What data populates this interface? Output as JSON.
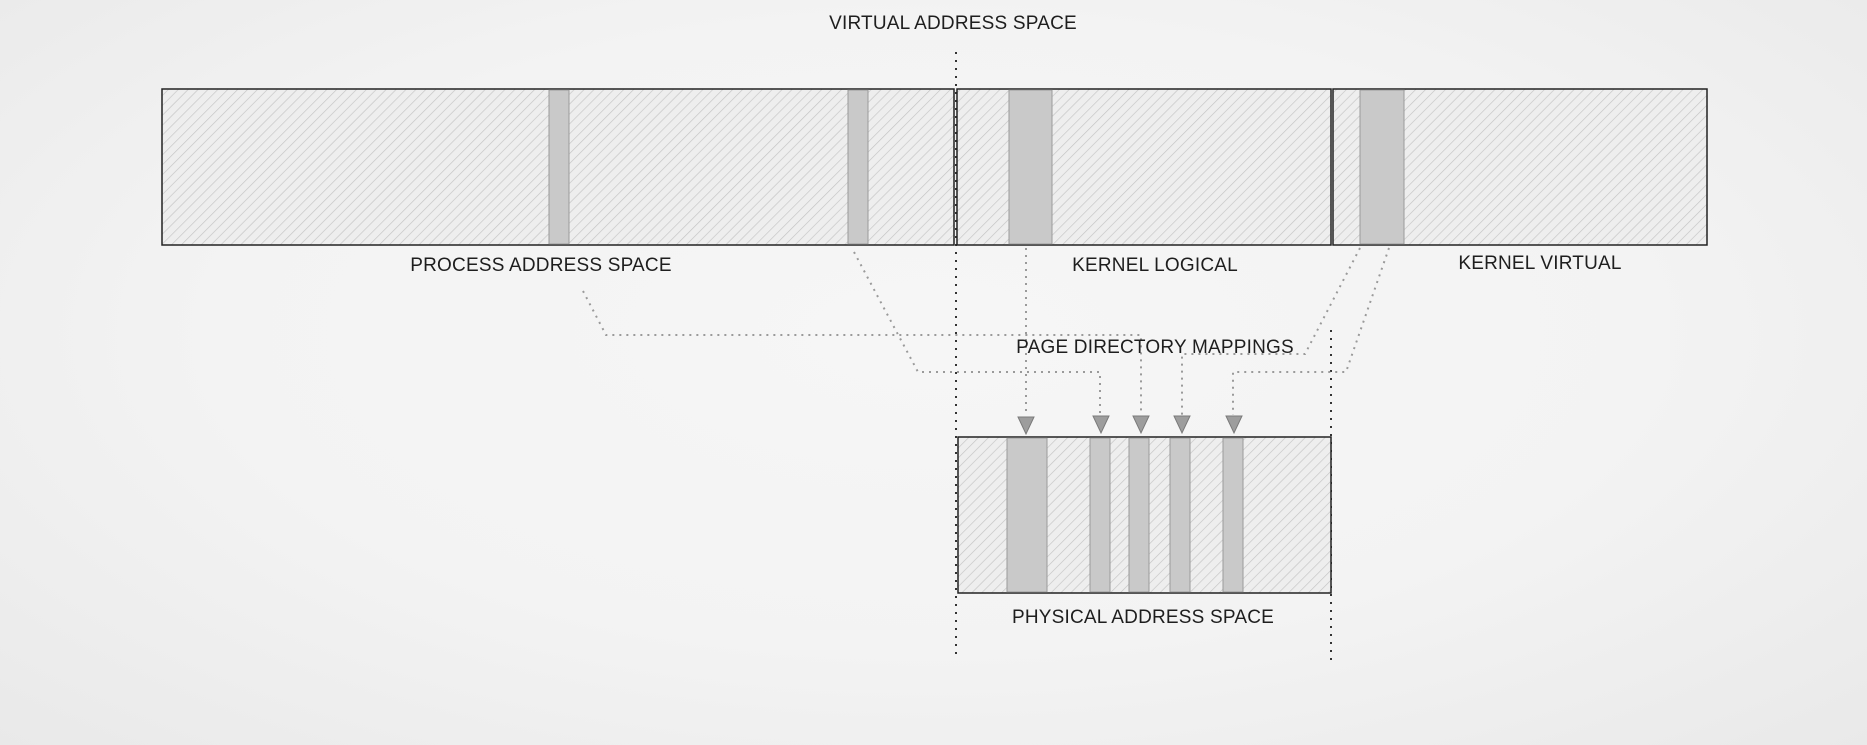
{
  "labels": {
    "virtual_address_space": "VIRTUAL ADDRESS SPACE",
    "process_address_space": "PROCESS ADDRESS SPACE",
    "kernel_logical": "KERNEL LOGICAL",
    "kernel_virtual": "KERNEL VIRTUAL",
    "page_directory_mappings": "PAGE DIRECTORY MAPPINGS",
    "physical_address_space": "PHYSICAL ADDRESS SPACE"
  },
  "colors": {
    "hatch_background": "#eeeeee",
    "hatch_line": "#c4c4c4",
    "page_fill": "#c9c9c9",
    "outline": "#222222",
    "mapping_line": "#9a9a9a",
    "arrow_fill": "#9d9d9d"
  }
}
